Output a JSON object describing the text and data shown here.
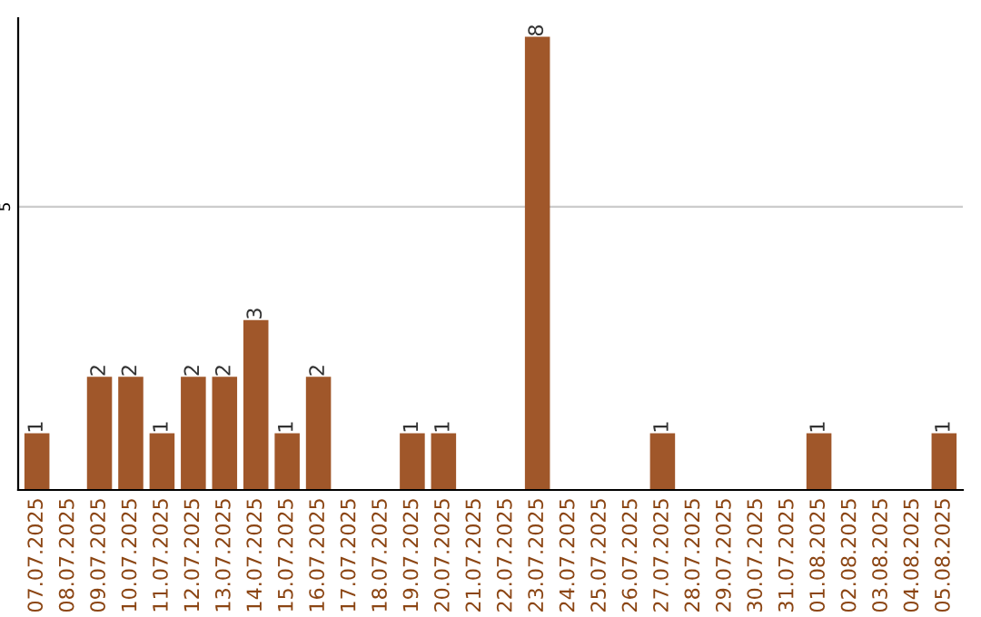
{
  "chart_data": {
    "type": "bar",
    "categories": [
      "07.07.2025",
      "08.07.2025",
      "09.07.2025",
      "10.07.2025",
      "11.07.2025",
      "12.07.2025",
      "13.07.2025",
      "14.07.2025",
      "15.07.2025",
      "16.07.2025",
      "17.07.2025",
      "18.07.2025",
      "19.07.2025",
      "20.07.2025",
      "21.07.2025",
      "22.07.2025",
      "23.07.2025",
      "24.07.2025",
      "25.07.2025",
      "26.07.2025",
      "27.07.2025",
      "28.07.2025",
      "29.07.2025",
      "30.07.2025",
      "31.07.2025",
      "01.08.2025",
      "02.08.2025",
      "03.08.2025",
      "04.08.2025",
      "05.08.2025"
    ],
    "values": [
      1,
      0,
      2,
      2,
      1,
      2,
      2,
      3,
      1,
      2,
      0,
      0,
      1,
      1,
      0,
      0,
      8,
      0,
      0,
      0,
      1,
      0,
      0,
      0,
      0,
      1,
      0,
      0,
      0,
      1
    ],
    "value_labels": [
      "1",
      null,
      "2",
      "2",
      "1",
      "2",
      "2",
      "3",
      "1",
      "2",
      null,
      null,
      "1",
      "1",
      null,
      null,
      "8",
      null,
      null,
      null,
      "1",
      null,
      null,
      null,
      null,
      "1",
      null,
      null,
      null,
      "1"
    ],
    "color": "#a0572a",
    "ylim": [
      0,
      8.33
    ],
    "yticks": [
      5
    ],
    "grid": "y"
  }
}
